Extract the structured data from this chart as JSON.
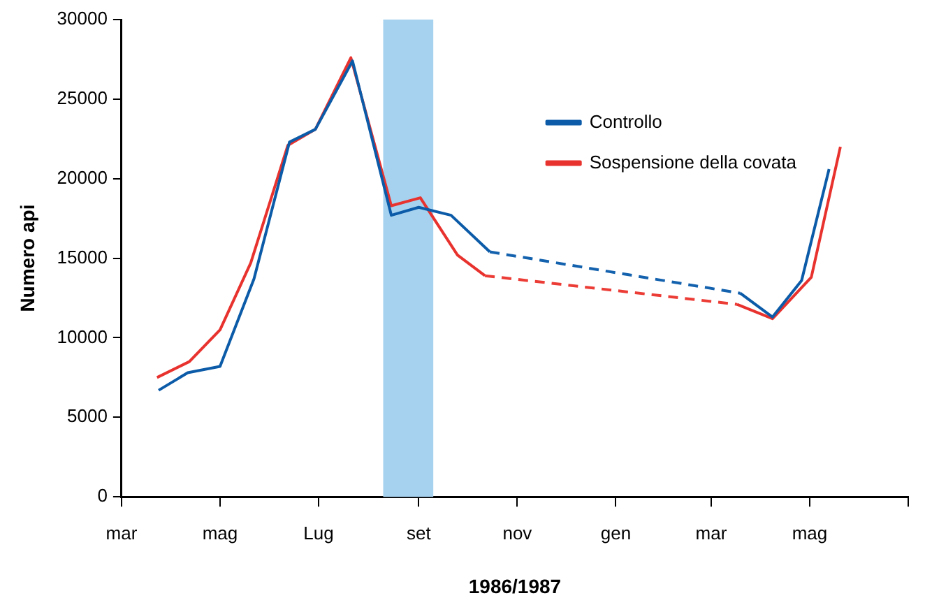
{
  "chart_data": {
    "type": "line",
    "xlabel": "1986/1987",
    "ylabel": "Numero api",
    "xlim": [
      "1986-03-01",
      "1987-07-01"
    ],
    "xticks": [
      {
        "value": "1986-03-01",
        "label": "mar"
      },
      {
        "value": "1986-05-01",
        "label": "mag"
      },
      {
        "value": "1986-07-01",
        "label": "Lug"
      },
      {
        "value": "1986-09-01",
        "label": "set"
      },
      {
        "value": "1986-11-01",
        "label": "nov"
      },
      {
        "value": "1987-01-01",
        "label": "gen"
      },
      {
        "value": "1987-03-01",
        "label": "mar"
      },
      {
        "value": "1987-05-01",
        "label": "mag"
      },
      {
        "value": "1987-07-01",
        "label": null
      }
    ],
    "ylim": [
      0,
      30000
    ],
    "yticks": [
      0,
      5000,
      10000,
      15000,
      20000,
      25000,
      30000
    ],
    "series": [
      {
        "name": "Controllo",
        "color": "#0b5ba8",
        "line_style": "solid",
        "x": [
          "1986-03-24",
          "1986-04-11",
          "1986-05-01",
          "1986-05-22",
          "1986-06-13",
          "1986-06-29",
          "1986-07-22",
          "1986-08-15",
          "1986-09-01",
          "1986-09-21",
          "1986-10-15",
          "1987-01-01",
          "1987-03-19",
          "1987-04-08",
          "1987-04-26",
          "1987-05-13"
        ],
        "values": [
          6700,
          7800,
          8200,
          13700,
          22300,
          23100,
          27400,
          17700,
          18200,
          17700,
          15400,
          null,
          12800,
          11300,
          13600,
          20600
        ]
      },
      {
        "color": "#1462ae",
        "line_style": "dashed",
        "x": [
          "1986-10-15",
          "1987-03-19"
        ],
        "values": [
          15400,
          12800
        ]
      },
      {
        "name": "Sospensione della covata",
        "color": "#e8322e",
        "line_style": "solid",
        "x": [
          "1986-03-23",
          "1986-04-12",
          "1986-05-01",
          "1986-05-20",
          "1986-06-12",
          "1986-06-29",
          "1986-07-21",
          "1986-08-15",
          "1986-09-02",
          "1986-09-25",
          "1986-10-12",
          "1987-01-01",
          "1987-03-17",
          "1987-04-08",
          "1987-05-02",
          "1987-05-20"
        ],
        "values": [
          7500,
          8500,
          10500,
          14700,
          22100,
          23100,
          27600,
          18300,
          18800,
          15200,
          13900,
          null,
          12100,
          11200,
          13800,
          22000
        ]
      },
      {
        "color": "#ec3c36",
        "line_style": "dashed",
        "x": [
          "1986-10-12",
          "1987-03-17"
        ],
        "values": [
          13900,
          12100
        ]
      }
    ],
    "bands": [
      {
        "axis": "x",
        "from": "1986-08-10",
        "to": "1986-09-10",
        "color": "#a6d2ef"
      }
    ],
    "grid": false,
    "legend": "top right",
    "marker": "none"
  }
}
